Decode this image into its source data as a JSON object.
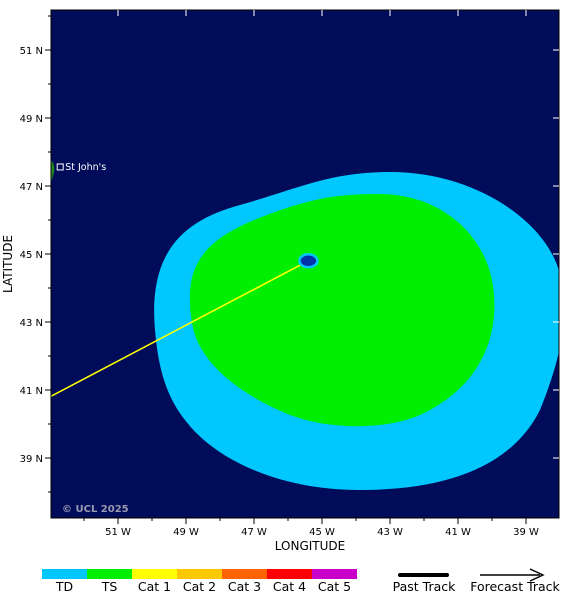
{
  "map": {
    "x_axis_label": "LONGITUDE",
    "y_axis_label": "LATITUDE",
    "lon_ticks": [
      "51 W",
      "49 W",
      "47 W",
      "45 W",
      "43 W",
      "41 W",
      "39 W"
    ],
    "lat_ticks": [
      "51 N",
      "49 N",
      "47 N",
      "45 N",
      "43 N",
      "41 N",
      "39 N"
    ],
    "copyright": "© UCL 2025",
    "city": {
      "name": "St John's",
      "lon": -52.7,
      "lat": 47.56
    },
    "storm_center": {
      "lon": -45.4,
      "lat": 44.8
    },
    "track_start": {
      "lon": -53.0,
      "lat": 40.8
    },
    "wind_fields": [
      {
        "category": "TS",
        "radius_note": "tropical storm wind field"
      },
      {
        "category": "TD",
        "radius_note": "tropical depression wind field"
      }
    ],
    "colors": {
      "ocean": "#000c5a",
      "land": "#1e8a1e",
      "track": "#ffff00"
    }
  },
  "legend": {
    "categories": [
      {
        "label": "TD",
        "color": "#00c8ff"
      },
      {
        "label": "TS",
        "color": "#00ee00"
      },
      {
        "label": "Cat 1",
        "color": "#ffff00"
      },
      {
        "label": "Cat 2",
        "color": "#ffc800"
      },
      {
        "label": "Cat 3",
        "color": "#ff6400"
      },
      {
        "label": "Cat 4",
        "color": "#ff0000"
      },
      {
        "label": "Cat 5",
        "color": "#c800c8"
      }
    ],
    "past_track_label": "Past Track",
    "forecast_track_label": "Forecast Track"
  }
}
